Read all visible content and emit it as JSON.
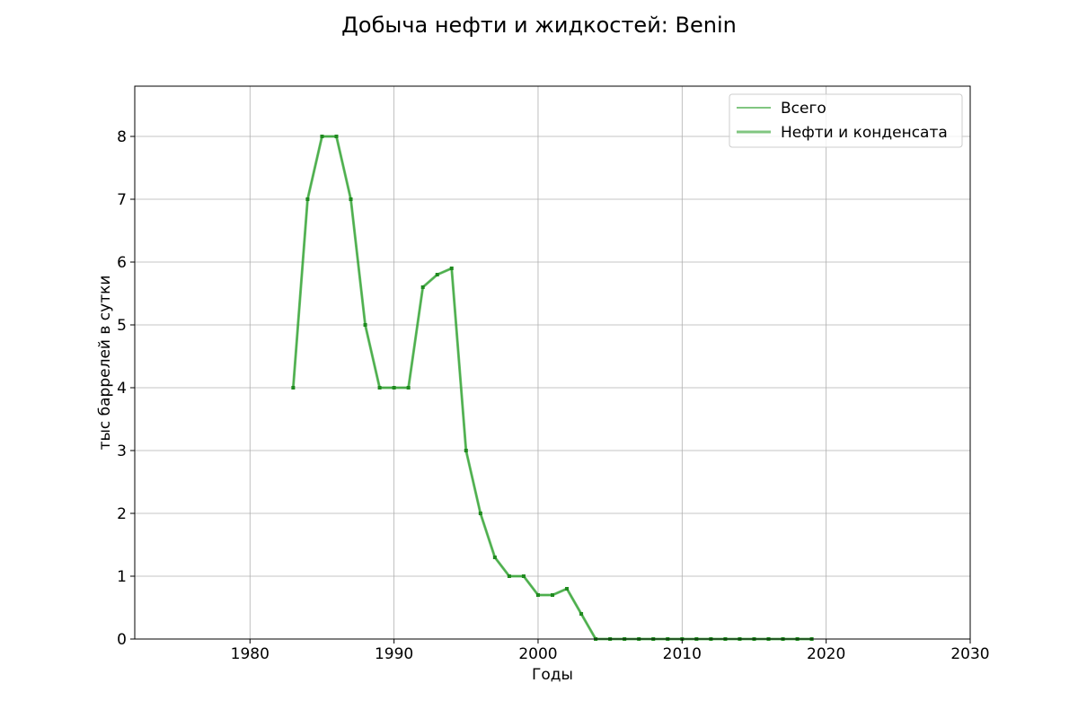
{
  "chart_data": {
    "type": "line",
    "title": "Добыча нефти и жидкостей: Benin",
    "xlabel": "Годы",
    "ylabel": "тыс баррелей в сутки",
    "xlim": [
      1972,
      2030
    ],
    "ylim": [
      0,
      8.8
    ],
    "xticks": [
      1980,
      1990,
      2000,
      2010,
      2020,
      2030
    ],
    "yticks": [
      0,
      1,
      2,
      3,
      4,
      5,
      6,
      7,
      8
    ],
    "grid": true,
    "legend_position": "top-right",
    "x": [
      1983,
      1984,
      1985,
      1986,
      1987,
      1988,
      1989,
      1990,
      1991,
      1992,
      1993,
      1994,
      1995,
      1996,
      1997,
      1998,
      1999,
      2000,
      2001,
      2002,
      2003,
      2004,
      2005,
      2006,
      2007,
      2008,
      2009,
      2010,
      2011,
      2012,
      2013,
      2014,
      2015,
      2016,
      2017,
      2018,
      2019
    ],
    "series": [
      {
        "name": "Всего",
        "color": "#2ca02c",
        "values": [
          4,
          7,
          8,
          8,
          7,
          5,
          4,
          4,
          4,
          5.6,
          5.8,
          5.9,
          3,
          2,
          1.3,
          1,
          1,
          0.7,
          0.7,
          0.8,
          0.4,
          0,
          0,
          0,
          0,
          0,
          0,
          0,
          0,
          0,
          0,
          0,
          0,
          0,
          0,
          0,
          0
        ]
      },
      {
        "name": "Нефти и конденсата",
        "color": "#2ca02c",
        "values": [
          4,
          7,
          8,
          8,
          7,
          5,
          4,
          4,
          4,
          5.6,
          5.8,
          5.9,
          3,
          2,
          1.3,
          1,
          1,
          0.7,
          0.7,
          0.8,
          0.4,
          0,
          0,
          0,
          0,
          0,
          0,
          0,
          0,
          0,
          0,
          0,
          0,
          0,
          0,
          0,
          0
        ]
      }
    ]
  }
}
